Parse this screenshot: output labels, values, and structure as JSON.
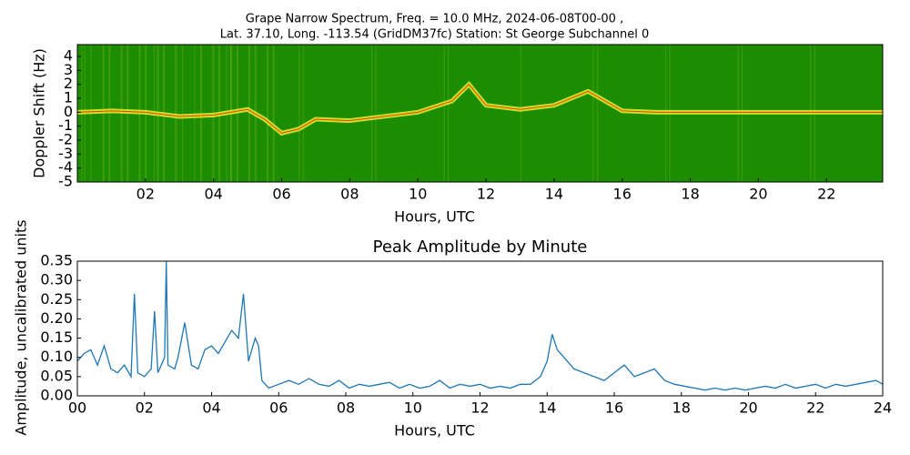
{
  "chart_data": [
    {
      "type": "spectrogram",
      "title": [
        "Grape Narrow Spectrum, Freq. = 10.0 MHz, 2024-06-08T00-00 ,",
        "Lat.  37.10, Long. -113.54 (GridDM37fc) Station: St George Subchannel 0"
      ],
      "x_label": "Hours, UTC",
      "y_label": "Doppler Shift (Hz)",
      "background_color": "#1c8c00",
      "color": "#ffff33",
      "x": [
        0,
        1,
        2,
        3,
        4,
        5,
        5.5,
        6,
        6.5,
        7,
        8,
        9,
        10,
        11,
        11.5,
        12,
        13,
        14,
        15,
        16,
        17,
        20,
        22,
        23.65
      ],
      "values": [
        0,
        0.1,
        0,
        -0.3,
        -0.2,
        0.2,
        -0.5,
        -1.5,
        -1.2,
        -0.5,
        -0.6,
        -0.3,
        0,
        0.8,
        2,
        0.5,
        0.2,
        0.5,
        1.5,
        0.1,
        0,
        0,
        0,
        0
      ],
      "xlim": [
        0,
        23.65
      ],
      "ylim": [
        -5,
        4.85
      ],
      "xticks": [
        {
          "value": 2,
          "label": "02"
        },
        {
          "value": 4,
          "label": "04"
        },
        {
          "value": 6,
          "label": "06"
        },
        {
          "value": 8,
          "label": "08"
        },
        10,
        12,
        14,
        16,
        18,
        20,
        22
      ],
      "yticks": [
        4,
        3,
        2,
        1,
        0,
        -1,
        -2,
        -3,
        -4,
        -5
      ]
    },
    {
      "type": "line",
      "title": "Peak Amplitude by Minute",
      "x_label": "Hours, UTC",
      "y_label": "Amplitude, uncalibrated units",
      "color": "#1f77b4",
      "x": [
        0,
        0.2,
        0.4,
        0.6,
        0.8,
        1.0,
        1.2,
        1.4,
        1.6,
        1.7,
        1.8,
        2.0,
        2.2,
        2.3,
        2.4,
        2.6,
        2.65,
        2.7,
        2.9,
        3.0,
        3.2,
        3.4,
        3.6,
        3.8,
        4.0,
        4.2,
        4.4,
        4.6,
        4.8,
        4.95,
        5.1,
        5.3,
        5.4,
        5.5,
        5.7,
        6.0,
        6.3,
        6.6,
        6.9,
        7.2,
        7.5,
        7.8,
        8.1,
        8.4,
        8.7,
        9.0,
        9.3,
        9.6,
        9.9,
        10.2,
        10.5,
        10.8,
        11.1,
        11.4,
        11.7,
        12.0,
        12.3,
        12.6,
        12.9,
        13.2,
        13.5,
        13.8,
        14.0,
        14.15,
        14.3,
        14.5,
        14.8,
        15.1,
        15.4,
        15.7,
        16.0,
        16.3,
        16.6,
        16.9,
        17.2,
        17.5,
        17.8,
        18.1,
        18.4,
        18.7,
        19.0,
        19.3,
        19.6,
        19.9,
        20.2,
        20.5,
        20.8,
        21.1,
        21.4,
        21.7,
        22.0,
        22.3,
        22.6,
        22.9,
        23.2,
        23.5,
        23.8,
        24.0
      ],
      "values": [
        0.09,
        0.11,
        0.12,
        0.08,
        0.13,
        0.07,
        0.06,
        0.08,
        0.05,
        0.265,
        0.06,
        0.05,
        0.07,
        0.22,
        0.06,
        0.1,
        0.35,
        0.08,
        0.07,
        0.1,
        0.19,
        0.08,
        0.07,
        0.12,
        0.13,
        0.11,
        0.14,
        0.17,
        0.15,
        0.265,
        0.09,
        0.15,
        0.13,
        0.04,
        0.02,
        0.03,
        0.04,
        0.03,
        0.045,
        0.03,
        0.025,
        0.04,
        0.02,
        0.03,
        0.025,
        0.03,
        0.035,
        0.02,
        0.03,
        0.02,
        0.025,
        0.04,
        0.02,
        0.03,
        0.025,
        0.03,
        0.02,
        0.025,
        0.02,
        0.03,
        0.03,
        0.05,
        0.09,
        0.16,
        0.12,
        0.1,
        0.07,
        0.06,
        0.05,
        0.04,
        0.06,
        0.08,
        0.05,
        0.06,
        0.07,
        0.04,
        0.03,
        0.025,
        0.02,
        0.015,
        0.02,
        0.015,
        0.02,
        0.015,
        0.02,
        0.025,
        0.02,
        0.03,
        0.02,
        0.025,
        0.03,
        0.02,
        0.03,
        0.025,
        0.03,
        0.035,
        0.04,
        0.03
      ],
      "xlim": [
        0,
        24
      ],
      "ylim": [
        0,
        0.35
      ],
      "xticks": [
        {
          "value": 0,
          "label": "00"
        },
        {
          "value": 2,
          "label": "02"
        },
        {
          "value": 4,
          "label": "04"
        },
        {
          "value": 6,
          "label": "06"
        },
        {
          "value": 8,
          "label": "08"
        },
        10,
        12,
        14,
        16,
        18,
        20,
        22,
        24
      ],
      "yticks": [
        {
          "value": 0,
          "label": "0.00"
        },
        {
          "value": 0.05,
          "label": "0.05"
        },
        {
          "value": 0.1,
          "label": "0.10"
        },
        {
          "value": 0.15,
          "label": "0.15"
        },
        {
          "value": 0.2,
          "label": "0.20"
        },
        {
          "value": 0.25,
          "label": "0.25"
        },
        {
          "value": 0.3,
          "label": "0.30"
        },
        {
          "value": 0.35,
          "label": "0.35"
        }
      ]
    }
  ]
}
